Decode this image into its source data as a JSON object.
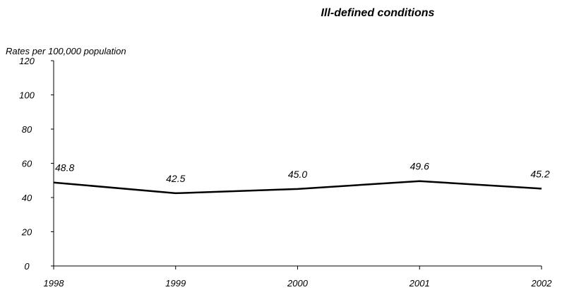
{
  "chart_data": {
    "type": "line",
    "title": "Ill-defined conditions",
    "ylabel": "Rates per 100,000 population",
    "xlabel": "",
    "categories": [
      "1998",
      "1999",
      "2000",
      "2001",
      "2002"
    ],
    "series": [
      {
        "values": [
          48.8,
          42.5,
          45.0,
          49.6,
          45.2
        ],
        "labels": [
          "48.8",
          "42.5",
          "45.0",
          "49.6",
          "45.2"
        ],
        "color": "#000000"
      }
    ],
    "ylim": [
      0,
      120
    ],
    "yticks": [
      0,
      20,
      40,
      60,
      80,
      100,
      120
    ],
    "ytick_labels": [
      "0",
      "20",
      "40",
      "60",
      "80",
      "100",
      "120"
    ],
    "grid": false,
    "legend": "none"
  }
}
